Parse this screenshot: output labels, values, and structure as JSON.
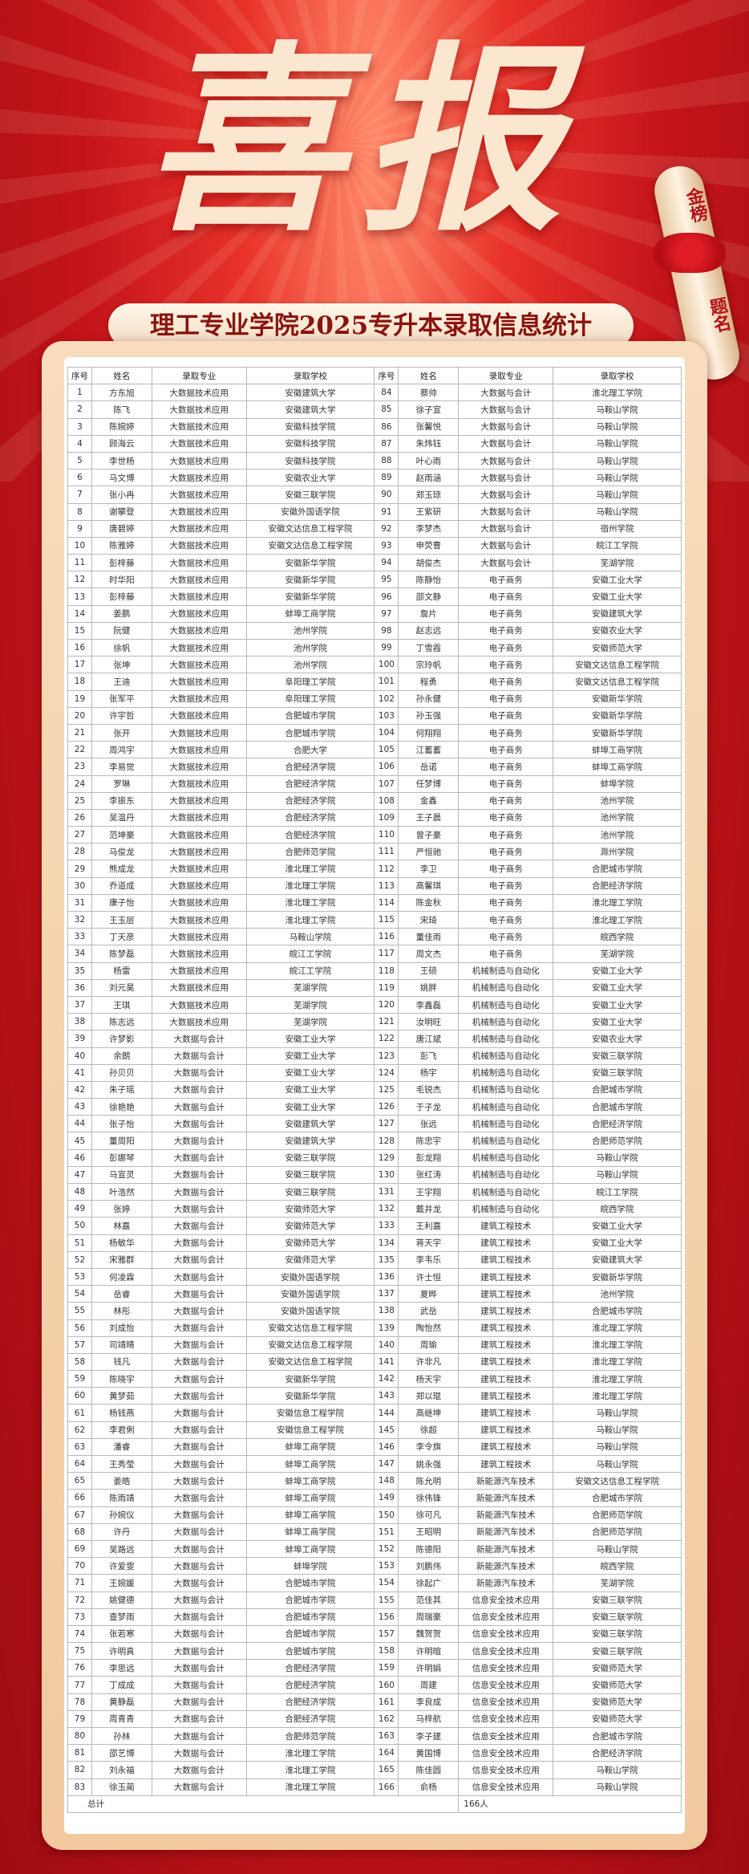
{
  "header": {
    "title": "喜报",
    "ribbon": [
      "金榜",
      "题名"
    ],
    "subtitle": "理工专业学院2025专升本录取信息统计"
  },
  "table": {
    "columns": [
      "序号",
      "姓名",
      "录取专业",
      "录取学校",
      "序号",
      "姓名",
      "录取专业",
      "录取学校"
    ],
    "rows": [
      [
        1,
        "方东旭",
        "大数据技术应用",
        "安徽建筑大学",
        84,
        "蔡帅",
        "大数据与会计",
        "淮北理工学院"
      ],
      [
        2,
        "陈飞",
        "大数据技术应用",
        "安徽建筑大学",
        85,
        "徐子宣",
        "大数据与会计",
        "马鞍山学院"
      ],
      [
        3,
        "陈婉婷",
        "大数据技术应用",
        "安徽科技学院",
        86,
        "张馨悦",
        "大数据与会计",
        "马鞍山学院"
      ],
      [
        4,
        "顾海云",
        "大数据技术应用",
        "安徽科技学院",
        87,
        "朱炜钰",
        "大数据与会计",
        "马鞍山学院"
      ],
      [
        5,
        "李世杨",
        "大数据技术应用",
        "安徽科技学院",
        88,
        "叶心雨",
        "大数据与会计",
        "马鞍山学院"
      ],
      [
        6,
        "马文博",
        "大数据技术应用",
        "安徽农业大学",
        89,
        "赵雨涵",
        "大数据与会计",
        "马鞍山学院"
      ],
      [
        7,
        "张小冉",
        "大数据技术应用",
        "安徽三联学院",
        90,
        "郑玉琼",
        "大数据与会计",
        "马鞍山学院"
      ],
      [
        8,
        "谢攀登",
        "大数据技术应用",
        "安徽外国语学院",
        91,
        "王紫研",
        "大数据与会计",
        "马鞍山学院"
      ],
      [
        9,
        "唐碧婷",
        "大数据技术应用",
        "安徽文达信息工程学院",
        92,
        "李梦杰",
        "大数据与会计",
        "宿州学院"
      ],
      [
        10,
        "陈雅婷",
        "大数据技术应用",
        "安徽文达信息工程学院",
        93,
        "申荧曹",
        "大数据与会计",
        "皖江工学院"
      ],
      [
        11,
        "彭梓藤",
        "大数据技术应用",
        "安徽新华学院",
        94,
        "胡俊杰",
        "大数据与会计",
        "芜湖学院"
      ],
      [
        12,
        "时华阳",
        "大数据技术应用",
        "安徽新华学院",
        95,
        "陈静怡",
        "电子商务",
        "安徽工业大学"
      ],
      [
        13,
        "彭梓藤",
        "大数据技术应用",
        "安徽新华学院",
        96,
        "邵文静",
        "电子商务",
        "安徽工业大学"
      ],
      [
        14,
        "姜鹏",
        "大数据技术应用",
        "蚌埠工商学院",
        97,
        "詹片",
        "电子商务",
        "安徽建筑大学"
      ],
      [
        15,
        "阮健",
        "大数据技术应用",
        "池州学院",
        98,
        "赵志远",
        "电子商务",
        "安徽农业大学"
      ],
      [
        16,
        "徐帆",
        "大数据技术应用",
        "池州学院",
        99,
        "丁雪霞",
        "电子商务",
        "安徽师范大学"
      ],
      [
        17,
        "张坤",
        "大数据技术应用",
        "池州学院",
        100,
        "宗玲帆",
        "电子商务",
        "安徽文达信息工程学院"
      ],
      [
        18,
        "王迪",
        "大数据技术应用",
        "阜阳理工学院",
        101,
        "程勇",
        "电子商务",
        "安徽文达信息工程学院"
      ],
      [
        19,
        "张军平",
        "大数据技术应用",
        "阜阳理工学院",
        102,
        "孙永健",
        "电子商务",
        "安徽新华学院"
      ],
      [
        20,
        "许宇哲",
        "大数据技术应用",
        "合肥城市学院",
        103,
        "孙玉强",
        "电子商务",
        "安徽新华学院"
      ],
      [
        21,
        "张开",
        "大数据技术应用",
        "合肥城市学院",
        104,
        "何翔翔",
        "电子商务",
        "安徽新华学院"
      ],
      [
        22,
        "周鸿宇",
        "大数据技术应用",
        "合肥大学",
        105,
        "江蓄蓄",
        "电子商务",
        "蚌埠工商学院"
      ],
      [
        23,
        "李易觉",
        "大数据技术应用",
        "合肥经济学院",
        106,
        "岳诺",
        "电子商务",
        "蚌埠工商学院"
      ],
      [
        24,
        "罗琳",
        "大数据技术应用",
        "合肥经济学院",
        107,
        "任梦博",
        "电子商务",
        "蚌埠学院"
      ],
      [
        25,
        "李振东",
        "大数据技术应用",
        "合肥经济学院",
        108,
        "金鑫",
        "电子商务",
        "池州学院"
      ],
      [
        26,
        "吴温丹",
        "大数据技术应用",
        "合肥经济学院",
        109,
        "王子晨",
        "电子商务",
        "池州学院"
      ],
      [
        27,
        "范坤豪",
        "大数据技术应用",
        "合肥经济学院",
        110,
        "曾子豪",
        "电子商务",
        "池州学院"
      ],
      [
        28,
        "马俊龙",
        "大数据技术应用",
        "合肥师范学院",
        111,
        "严恒驰",
        "电子商务",
        "滁州学院"
      ],
      [
        29,
        "熊成龙",
        "大数据技术应用",
        "淮北理工学院",
        112,
        "李卫",
        "电子商务",
        "合肥城市学院"
      ],
      [
        30,
        "乔道成",
        "大数据技术应用",
        "淮北理工学院",
        113,
        "高馨琪",
        "电子商务",
        "合肥经济学院"
      ],
      [
        31,
        "康子怡",
        "大数据技术应用",
        "淮北理工学院",
        114,
        "陈金秋",
        "电子商务",
        "淮北理工学院"
      ],
      [
        32,
        "王玉层",
        "大数据技术应用",
        "淮北理工学院",
        115,
        "宋琦",
        "电子商务",
        "淮北理工学院"
      ],
      [
        33,
        "丁天彦",
        "大数据技术应用",
        "马鞍山学院",
        116,
        "董佳雨",
        "电子商务",
        "皖西学院"
      ],
      [
        34,
        "陈梦磊",
        "大数据技术应用",
        "皖江工学院",
        117,
        "周文杰",
        "电子商务",
        "芜湖学院"
      ],
      [
        35,
        "杨雷",
        "大数据技术应用",
        "皖江工学院",
        118,
        "王硕",
        "机械制造与自动化",
        "安徽工业大学"
      ],
      [
        36,
        "刘元昊",
        "大数据技术应用",
        "芜湖学院",
        119,
        "姚胖",
        "机械制造与自动化",
        "安徽工业大学"
      ],
      [
        37,
        "王琪",
        "大数据技术应用",
        "芜湖学院",
        120,
        "李鑫磊",
        "机械制造与自动化",
        "安徽工业大学"
      ],
      [
        38,
        "陈志远",
        "大数据技术应用",
        "芜湖学院",
        121,
        "汝明旺",
        "机械制造与自动化",
        "安徽工业大学"
      ],
      [
        39,
        "许梦影",
        "大数据与会计",
        "安徽工业大学",
        122,
        "唐江斌",
        "机械制造与自动化",
        "安徽农业大学"
      ],
      [
        40,
        "余朗",
        "大数据与会计",
        "安徽工业大学",
        123,
        "彭飞",
        "机械制造与自动化",
        "安徽三联学院"
      ],
      [
        41,
        "孙贝贝",
        "大数据与会计",
        "安徽工业大学",
        124,
        "杨宇",
        "机械制造与自动化",
        "安徽三联学院"
      ],
      [
        42,
        "朱子瑶",
        "大数据与会计",
        "安徽工业大学",
        125,
        "毛锐杰",
        "机械制造与自动化",
        "合肥城市学院"
      ],
      [
        43,
        "徐艳艳",
        "大数据与会计",
        "安徽工业大学",
        126,
        "于子龙",
        "机械制造与自动化",
        "合肥城市学院"
      ],
      [
        44,
        "张子怡",
        "大数据与会计",
        "安徽建筑大学",
        127,
        "张远",
        "机械制造与自动化",
        "合肥经济学院"
      ],
      [
        45,
        "董周阳",
        "大数据与会计",
        "安徽建筑大学",
        128,
        "陈忠宇",
        "机械制造与自动化",
        "合肥师范学院"
      ],
      [
        46,
        "彭娜琴",
        "大数据与会计",
        "安徽三联学院",
        129,
        "彭龙翔",
        "机械制造与自动化",
        "马鞍山学院"
      ],
      [
        47,
        "马宣灵",
        "大数据与会计",
        "安徽三联学院",
        130,
        "张红涛",
        "机械制造与自动化",
        "马鞍山学院"
      ],
      [
        48,
        "叶浩然",
        "大数据与会计",
        "安徽三联学院",
        131,
        "王宇翔",
        "机械制造与自动化",
        "皖江工学院"
      ],
      [
        49,
        "张婷",
        "大数据与会计",
        "安徽师范大学",
        132,
        "戴井龙",
        "机械制造与自动化",
        "皖西学院"
      ],
      [
        50,
        "林嘉",
        "大数据与会计",
        "安徽师范大学",
        133,
        "王利嘉",
        "建筑工程技术",
        "安徽工业大学"
      ],
      [
        51,
        "杨敏华",
        "大数据与会计",
        "安徽师范大学",
        134,
        "蒋天宇",
        "建筑工程技术",
        "安徽工业大学"
      ],
      [
        52,
        "宋雅群",
        "大数据与会计",
        "安徽师范大学",
        135,
        "李韦乐",
        "建筑工程技术",
        "安徽建筑大学"
      ],
      [
        53,
        "何凌霖",
        "大数据与会计",
        "安徽外国语学院",
        136,
        "许士恒",
        "建筑工程技术",
        "安徽新华学院"
      ],
      [
        54,
        "岳睿",
        "大数据与会计",
        "安徽外国语学院",
        137,
        "夏晔",
        "建筑工程技术",
        "池州学院"
      ],
      [
        55,
        "林彤",
        "大数据与会计",
        "安徽外国语学院",
        138,
        "武岳",
        "建筑工程技术",
        "合肥城市学院"
      ],
      [
        56,
        "刘成怡",
        "大数据与会计",
        "安徽文达信息工程学院",
        139,
        "陶怡然",
        "建筑工程技术",
        "淮北理工学院"
      ],
      [
        57,
        "司靖晴",
        "大数据与会计",
        "安徽文达信息工程学院",
        140,
        "周瑜",
        "建筑工程技术",
        "淮北理工学院"
      ],
      [
        58,
        "钱凡",
        "大数据与会计",
        "安徽文达信息工程学院",
        141,
        "许非凡",
        "建筑工程技术",
        "淮北理工学院"
      ],
      [
        59,
        "陈晓宇",
        "大数据与会计",
        "安徽新华学院",
        142,
        "杨天宇",
        "建筑工程技术",
        "淮北理工学院"
      ],
      [
        60,
        "黄梦茹",
        "大数据与会计",
        "安徽新华学院",
        143,
        "郑以琨",
        "建筑工程技术",
        "淮北理工学院"
      ],
      [
        61,
        "杨钱燕",
        "大数据与会计",
        "安徽信息工程学院",
        144,
        "高继坤",
        "建筑工程技术",
        "马鞍山学院"
      ],
      [
        62,
        "李君俐",
        "大数据与会计",
        "安徽信息工程学院",
        145,
        "徐超",
        "建筑工程技术",
        "马鞍山学院"
      ],
      [
        63,
        "潘睿",
        "大数据与会计",
        "蚌埠工商学院",
        146,
        "李令旗",
        "建筑工程技术",
        "马鞍山学院"
      ],
      [
        64,
        "王秀莹",
        "大数据与会计",
        "蚌埠工商学院",
        147,
        "姚永强",
        "建筑工程技术",
        "马鞍山学院"
      ],
      [
        65,
        "姜皓",
        "大数据与会计",
        "蚌埠工商学院",
        148,
        "陈允明",
        "新能源汽车技术",
        "安徽文达信息工程学院"
      ],
      [
        66,
        "陈雨靖",
        "大数据与会计",
        "蚌埠工商学院",
        149,
        "徐伟锋",
        "新能源汽车技术",
        "合肥城市学院"
      ],
      [
        67,
        "孙婉仪",
        "大数据与会计",
        "蚌埠工商学院",
        150,
        "徐可凡",
        "新能源汽车技术",
        "合肥师范学院"
      ],
      [
        68,
        "许丹",
        "大数据与会计",
        "蚌埠工商学院",
        151,
        "王昭明",
        "新能源汽车技术",
        "合肥师范学院"
      ],
      [
        69,
        "吴路远",
        "大数据与会计",
        "蚌埠工商学院",
        152,
        "陈德阳",
        "新能源汽车技术",
        "马鞍山学院"
      ],
      [
        70,
        "许爱雯",
        "大数据与会计",
        "蚌埠学院",
        153,
        "刘鹏伟",
        "新能源汽车技术",
        "皖西学院"
      ],
      [
        71,
        "王婉媛",
        "大数据与会计",
        "合肥城市学院",
        154,
        "徐起广",
        "新能源汽车技术",
        "芜湖学院"
      ],
      [
        72,
        "姚健德",
        "大数据与会计",
        "合肥城市学院",
        155,
        "范佳其",
        "信息安全技术应用",
        "安徽三联学院"
      ],
      [
        73,
        "查梦雨",
        "大数据与会计",
        "合肥城市学院",
        156,
        "周瑞豪",
        "信息安全技术应用",
        "安徽三联学院"
      ],
      [
        74,
        "张若寒",
        "大数据与会计",
        "合肥城市学院",
        157,
        "魏贺贺",
        "信息安全技术应用",
        "安徽三联学院"
      ],
      [
        75,
        "许明真",
        "大数据与会计",
        "合肥城市学院",
        158,
        "许明暄",
        "信息安全技术应用",
        "安徽三联学院"
      ],
      [
        76,
        "李思远",
        "大数据与会计",
        "合肥经济学院",
        159,
        "许明娟",
        "信息安全技术应用",
        "安徽师范大学"
      ],
      [
        77,
        "丁成成",
        "大数据与会计",
        "合肥经济学院",
        160,
        "周建",
        "信息安全技术应用",
        "安徽师范大学"
      ],
      [
        78,
        "黄静磊",
        "大数据与会计",
        "合肥经济学院",
        161,
        "李良成",
        "信息安全技术应用",
        "安徽师范大学"
      ],
      [
        79,
        "周青青",
        "大数据与会计",
        "合肥经济学院",
        162,
        "马梓航",
        "信息安全技术应用",
        "安徽师范大学"
      ],
      [
        80,
        "孙林",
        "大数据与会计",
        "合肥师范学院",
        163,
        "李子建",
        "信息安全技术应用",
        "合肥城市学院"
      ],
      [
        81,
        "邵艺博",
        "大数据与会计",
        "淮北理工学院",
        164,
        "黄国博",
        "信息安全技术应用",
        "合肥经济学院"
      ],
      [
        82,
        "刘永福",
        "大数据与会计",
        "淮北理工学院",
        165,
        "陈佳圆",
        "信息安全技术应用",
        "马鞍山学院"
      ],
      [
        83,
        "徐玉蔺",
        "大数据与会计",
        "淮北理工学院",
        166,
        "俞杨",
        "信息安全技术应用",
        "马鞍山学院"
      ]
    ],
    "footer": [
      "总计",
      "166人"
    ]
  }
}
